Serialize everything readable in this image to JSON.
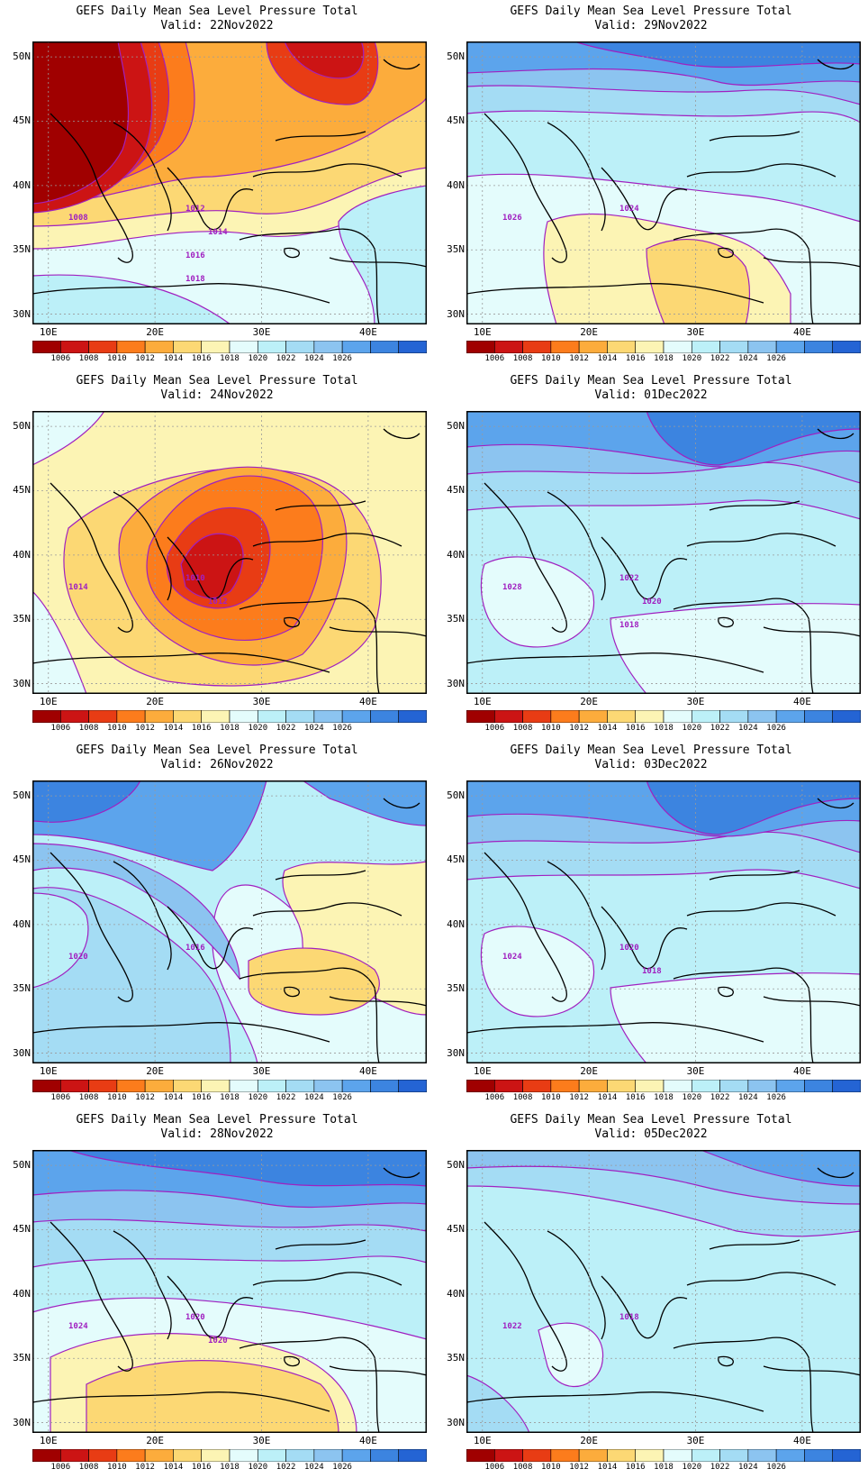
{
  "colorbar": {
    "colors": [
      "#a00000",
      "#cc1414",
      "#e83c14",
      "#fc7c1c",
      "#fcac3c",
      "#fcd874",
      "#fcf4b4",
      "#e4fcfc",
      "#bcf0f8",
      "#a4dcf4",
      "#8cc4f0",
      "#5ca4ec",
      "#3c84e0",
      "#2464d4"
    ],
    "labels": [
      "1006",
      "1008",
      "1010",
      "1012",
      "1014",
      "1016",
      "1018",
      "1020",
      "1022",
      "1024",
      "1026"
    ]
  },
  "axes": {
    "lat_labels": [
      "50N",
      "45N",
      "40N",
      "35N",
      "30N"
    ],
    "lon_labels": [
      "10E",
      "20E",
      "30E",
      "40E"
    ]
  },
  "contour_color": "#a020c0",
  "panels": [
    {
      "title": "GEFS Daily Mean Sea Level Pressure Total",
      "valid": "Valid: 22Nov2022",
      "regime": "low",
      "contour_labels": [
        "1008",
        "1012",
        "1014",
        "1016",
        "1018"
      ]
    },
    {
      "title": "GEFS Daily Mean Sea Level Pressure Total",
      "valid": "Valid: 29Nov2022",
      "regime": "high_south_warm",
      "contour_labels": [
        "1026",
        "1024"
      ]
    },
    {
      "title": "GEFS Daily Mean Sea Level Pressure Total",
      "valid": "Valid: 24Nov2022",
      "regime": "deep_low",
      "contour_labels": [
        "1014",
        "1010",
        "1012"
      ]
    },
    {
      "title": "GEFS Daily Mean Sea Level Pressure Total",
      "valid": "Valid: 01Dec2022",
      "regime": "high",
      "contour_labels": [
        "1028",
        "1022",
        "1020",
        "1018"
      ]
    },
    {
      "title": "GEFS Daily Mean Sea Level Pressure Total",
      "valid": "Valid: 26Nov2022",
      "regime": "mixed",
      "contour_labels": [
        "1020",
        "1016"
      ]
    },
    {
      "title": "GEFS Daily Mean Sea Level Pressure Total",
      "valid": "Valid: 03Dec2022",
      "regime": "high",
      "contour_labels": [
        "1024",
        "1020",
        "1018"
      ]
    },
    {
      "title": "GEFS Daily Mean Sea Level Pressure Total",
      "valid": "Valid: 28Nov2022",
      "regime": "high_south_warm2",
      "contour_labels": [
        "1024",
        "1020",
        "1020"
      ]
    },
    {
      "title": "GEFS Daily Mean Sea Level Pressure Total",
      "valid": "Valid: 05Dec2022",
      "regime": "high_mild",
      "contour_labels": [
        "1022",
        "1018"
      ]
    }
  ]
}
